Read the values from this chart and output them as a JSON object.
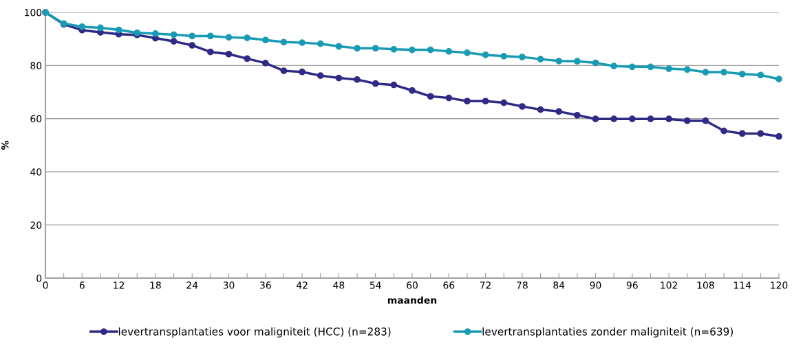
{
  "chart_data": {
    "type": "line",
    "xlabel": "maanden",
    "ylabel": "%",
    "x": [
      0,
      3,
      6,
      9,
      12,
      15,
      18,
      21,
      24,
      27,
      30,
      33,
      36,
      39,
      42,
      45,
      48,
      51,
      54,
      57,
      60,
      63,
      66,
      69,
      72,
      75,
      78,
      81,
      84,
      87,
      90,
      93,
      96,
      99,
      102,
      105,
      108,
      111,
      114,
      117,
      120
    ],
    "series": [
      {
        "name": "levertransplantaties voor maligniteit (HCC) (n=283)",
        "color": "#2e2a85",
        "values": [
          100,
          95.5,
          93.3,
          92.5,
          91.8,
          91.5,
          90.3,
          89.1,
          87.6,
          85.1,
          84.3,
          82.6,
          80.9,
          78.0,
          77.6,
          76.2,
          75.3,
          74.7,
          73.2,
          72.7,
          70.6,
          68.4,
          67.8,
          66.6,
          66.6,
          66.0,
          64.6,
          63.4,
          62.7,
          61.3,
          59.9,
          59.9,
          59.9,
          59.9,
          59.9,
          59.2,
          59.2,
          55.4,
          54.4,
          54.4,
          53.3
        ]
      },
      {
        "name": "levertransplantaties zonder maligniteit (n=639)",
        "color": "#1a9bb5",
        "values": [
          100,
          95.8,
          94.6,
          94.2,
          93.4,
          92.3,
          92.0,
          91.6,
          91.1,
          91.1,
          90.6,
          90.4,
          89.6,
          88.8,
          88.6,
          88.2,
          87.2,
          86.5,
          86.5,
          86.1,
          85.9,
          85.9,
          85.3,
          84.8,
          84.0,
          83.5,
          83.2,
          82.4,
          81.7,
          81.6,
          81.0,
          79.8,
          79.5,
          79.5,
          78.8,
          78.5,
          77.5,
          77.5,
          76.8,
          76.4,
          74.9
        ]
      }
    ],
    "xlim": [
      0,
      120
    ],
    "xticks": [
      0,
      {
        "value": 3,
        "label": null
      },
      6,
      {
        "value": 9,
        "label": null
      },
      12,
      {
        "value": 15,
        "label": null
      },
      18,
      {
        "value": 21,
        "label": null
      },
      24,
      {
        "value": 27,
        "label": null
      },
      30,
      {
        "value": 33,
        "label": null
      },
      36,
      {
        "value": 39,
        "label": null
      },
      42,
      {
        "value": 45,
        "label": null
      },
      48,
      {
        "value": 51,
        "label": null
      },
      54,
      {
        "value": 57,
        "label": null
      },
      60,
      {
        "value": 63,
        "label": null
      },
      66,
      {
        "value": 69,
        "label": null
      },
      72,
      {
        "value": 75,
        "label": null
      },
      78,
      {
        "value": 81,
        "label": null
      },
      84,
      {
        "value": 87,
        "label": null
      },
      90,
      {
        "value": 93,
        "label": null
      },
      96,
      {
        "value": 99,
        "label": null
      },
      102,
      {
        "value": 105,
        "label": null
      },
      108,
      {
        "value": 111,
        "label": null
      },
      114,
      {
        "value": 117,
        "label": null
      },
      120
    ],
    "ylim": [
      0,
      100
    ],
    "yticks": [
      0,
      20,
      40,
      60,
      80,
      100
    ],
    "grid": "y",
    "legend": "bottom",
    "marker": "circle",
    "line_style": "solid"
  }
}
